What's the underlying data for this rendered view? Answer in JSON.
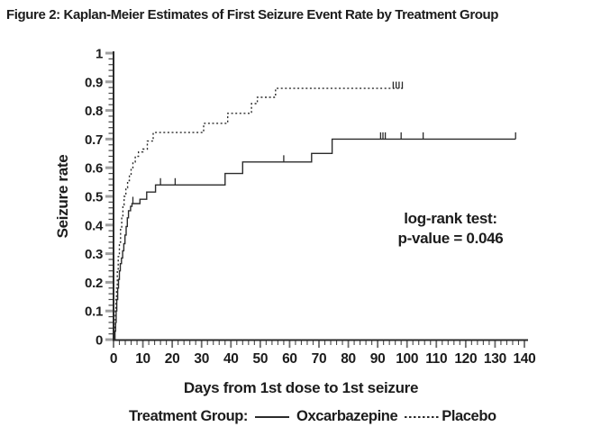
{
  "figure": {
    "title": "Figure 2: Kaplan-Meier Estimates of First Seizure Event Rate by Treatment Group"
  },
  "annotation": {
    "line1": "log-rank test:",
    "line2": "p-value = 0.046"
  },
  "legend": {
    "label": "Treatment Group:",
    "series": [
      {
        "name": "Oxcarbazepine",
        "line": "solid"
      },
      {
        "name": "Placebo",
        "line": "dotted"
      }
    ]
  },
  "colors": {
    "text": "#1c1c1c",
    "curve": "#2b2b2b",
    "axis": "#2a2a2a",
    "tick_major_y": "#a0a0a0",
    "tick_minor": "#474747",
    "tick_major_x": "#6a6a6a",
    "background": "#ffffff"
  },
  "chart_data": {
    "type": "line",
    "subtype": "kaplan-meier-step",
    "title": "Figure 2: Kaplan-Meier Estimates of First Seizure Event Rate by Treatment Group",
    "xlabel": "Days from 1st dose to 1st seizure",
    "ylabel": "Seizure rate",
    "xlim": [
      0,
      143
    ],
    "ylim": [
      0,
      1
    ],
    "x_ticks": [
      0,
      10,
      20,
      30,
      40,
      50,
      60,
      70,
      80,
      90,
      100,
      110,
      120,
      130,
      140
    ],
    "y_ticks": [
      "0",
      "0.1",
      "0.2",
      "0.3",
      "0.4",
      "0.5",
      "0.6",
      "0.7",
      "0.8",
      "0.9",
      "1"
    ],
    "x_minor_step": 2,
    "y_minor_step": 0.02,
    "grid": false,
    "legend_position": "bottom",
    "annotation_text": "log-rank test: p-value = 0.046",
    "series": [
      {
        "name": "Oxcarbazepine",
        "line": "solid",
        "steps": [
          [
            0,
            0
          ],
          [
            0.5,
            0.03
          ],
          [
            0.7,
            0.06
          ],
          [
            0.9,
            0.1
          ],
          [
            1.1,
            0.14
          ],
          [
            1.4,
            0.18
          ],
          [
            1.7,
            0.21
          ],
          [
            2.0,
            0.24
          ],
          [
            2.3,
            0.265
          ],
          [
            2.7,
            0.285
          ],
          [
            3.1,
            0.31
          ],
          [
            3.5,
            0.335
          ],
          [
            3.9,
            0.365
          ],
          [
            4.3,
            0.395
          ],
          [
            4.7,
            0.425
          ],
          [
            5.1,
            0.45
          ],
          [
            5.8,
            0.465
          ],
          [
            6.3,
            0.475
          ],
          [
            9.0,
            0.49
          ],
          [
            11.3,
            0.515
          ],
          [
            14.3,
            0.54
          ],
          [
            38.0,
            0.58
          ],
          [
            44.0,
            0.62
          ],
          [
            67.5,
            0.65
          ],
          [
            74.5,
            0.7
          ]
        ],
        "end_day": 137,
        "censor_marks": [
          [
            6.6,
            0.475
          ],
          [
            16,
            0.54
          ],
          [
            21,
            0.54
          ],
          [
            58,
            0.62
          ],
          [
            91,
            0.7
          ],
          [
            91.8,
            0.7
          ],
          [
            92.6,
            0.7
          ],
          [
            98,
            0.7
          ],
          [
            105.5,
            0.7
          ],
          [
            137,
            0.7
          ]
        ]
      },
      {
        "name": "Placebo",
        "line": "dotted",
        "steps": [
          [
            0,
            0
          ],
          [
            0.4,
            0.05
          ],
          [
            0.6,
            0.1
          ],
          [
            0.8,
            0.14
          ],
          [
            1.0,
            0.18
          ],
          [
            1.3,
            0.24
          ],
          [
            1.6,
            0.29
          ],
          [
            2.0,
            0.34
          ],
          [
            2.4,
            0.39
          ],
          [
            2.8,
            0.43
          ],
          [
            3.2,
            0.47
          ],
          [
            3.6,
            0.5
          ],
          [
            4.2,
            0.53
          ],
          [
            4.8,
            0.555
          ],
          [
            5.4,
            0.575
          ],
          [
            6.0,
            0.6
          ],
          [
            6.6,
            0.62
          ],
          [
            7.4,
            0.64
          ],
          [
            8.5,
            0.655
          ],
          [
            10.0,
            0.665
          ],
          [
            11.5,
            0.693
          ],
          [
            13.5,
            0.723
          ],
          [
            30.7,
            0.755
          ],
          [
            38.9,
            0.79
          ],
          [
            47.0,
            0.824
          ],
          [
            49.0,
            0.846
          ],
          [
            55.2,
            0.877
          ]
        ],
        "end_day": 98.8,
        "censor_marks": [
          [
            95.3,
            0.877
          ],
          [
            96.3,
            0.877
          ],
          [
            97.3,
            0.877
          ],
          [
            98.4,
            0.877
          ]
        ]
      }
    ]
  }
}
